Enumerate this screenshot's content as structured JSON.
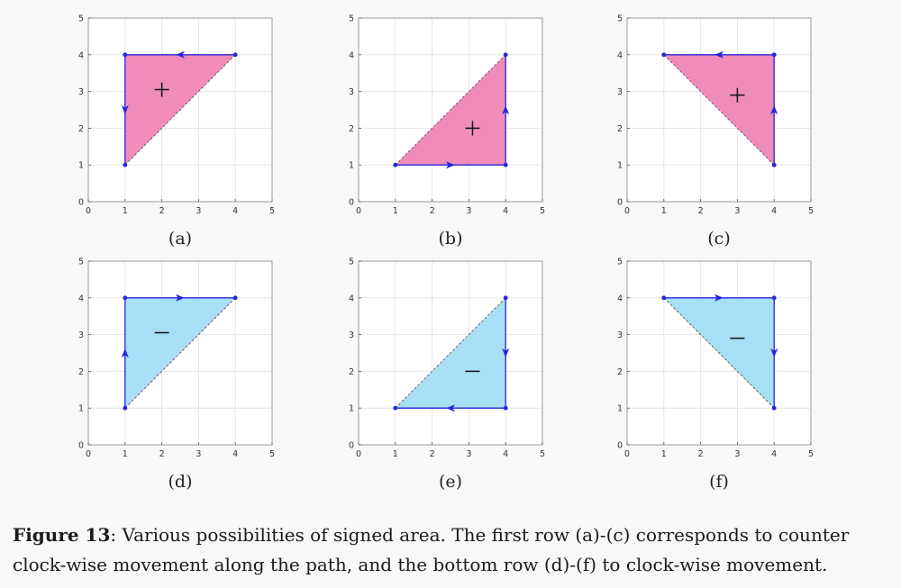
{
  "figure": {
    "caption_label": "Figure 13",
    "caption_text": ": Various possibilities of signed area. The first row (a)-(c) corresponds to counter clock-wise movement along the path, and the bottom row (d)-(f) to clock-wise movement."
  },
  "colors": {
    "positive_fill": "#f08cba",
    "negative_fill": "#a7dff4",
    "path": "#2626d9",
    "grid": "#e6e6e6",
    "axes": "#555555"
  },
  "chart_data": [
    {
      "type": "line",
      "label": "(a)",
      "xlim": [
        0,
        5
      ],
      "ylim": [
        0,
        5
      ],
      "xticks": [
        0,
        1,
        2,
        3,
        4,
        5
      ],
      "yticks": [
        0,
        1,
        2,
        3,
        4,
        5
      ],
      "grid": true,
      "sign": "+",
      "sign_position": [
        2,
        3.05
      ],
      "series": [
        {
          "x": [
            1,
            4,
            1,
            1
          ],
          "y": [
            1,
            4,
            4,
            1
          ]
        }
      ]
    },
    {
      "type": "line",
      "label": "(b)",
      "xlim": [
        0,
        5
      ],
      "ylim": [
        0,
        5
      ],
      "xticks": [
        0,
        1,
        2,
        3,
        4,
        5
      ],
      "yticks": [
        0,
        1,
        2,
        3,
        4,
        5
      ],
      "grid": true,
      "sign": "+",
      "sign_position": [
        3.1,
        2
      ],
      "series": [
        {
          "x": [
            1,
            4,
            4,
            1
          ],
          "y": [
            1,
            1,
            4,
            1
          ]
        }
      ]
    },
    {
      "type": "line",
      "label": "(c)",
      "xlim": [
        0,
        5
      ],
      "ylim": [
        0,
        5
      ],
      "xticks": [
        0,
        1,
        2,
        3,
        4,
        5
      ],
      "yticks": [
        0,
        1,
        2,
        3,
        4,
        5
      ],
      "grid": true,
      "sign": "+",
      "sign_position": [
        3,
        2.9
      ],
      "series": [
        {
          "x": [
            4,
            4,
            1,
            4
          ],
          "y": [
            1,
            4,
            4,
            1
          ]
        }
      ]
    },
    {
      "type": "line",
      "label": "(d)",
      "xlim": [
        0,
        5
      ],
      "ylim": [
        0,
        5
      ],
      "xticks": [
        0,
        1,
        2,
        3,
        4,
        5
      ],
      "yticks": [
        0,
        1,
        2,
        3,
        4,
        5
      ],
      "grid": true,
      "sign": "−",
      "sign_position": [
        2,
        3.05
      ],
      "series": [
        {
          "x": [
            1,
            1,
            4,
            1
          ],
          "y": [
            1,
            4,
            4,
            1
          ]
        }
      ]
    },
    {
      "type": "line",
      "label": "(e)",
      "xlim": [
        0,
        5
      ],
      "ylim": [
        0,
        5
      ],
      "xticks": [
        0,
        1,
        2,
        3,
        4,
        5
      ],
      "yticks": [
        0,
        1,
        2,
        3,
        4,
        5
      ],
      "grid": true,
      "sign": "−",
      "sign_position": [
        3.1,
        2
      ],
      "series": [
        {
          "x": [
            1,
            4,
            4,
            1
          ],
          "y": [
            1,
            4,
            1,
            1
          ]
        }
      ]
    },
    {
      "type": "line",
      "label": "(f)",
      "xlim": [
        0,
        5
      ],
      "ylim": [
        0,
        5
      ],
      "xticks": [
        0,
        1,
        2,
        3,
        4,
        5
      ],
      "yticks": [
        0,
        1,
        2,
        3,
        4,
        5
      ],
      "grid": true,
      "sign": "−",
      "sign_position": [
        3,
        2.9
      ],
      "series": [
        {
          "x": [
            4,
            1,
            4,
            4
          ],
          "y": [
            1,
            4,
            4,
            1
          ]
        }
      ]
    }
  ]
}
